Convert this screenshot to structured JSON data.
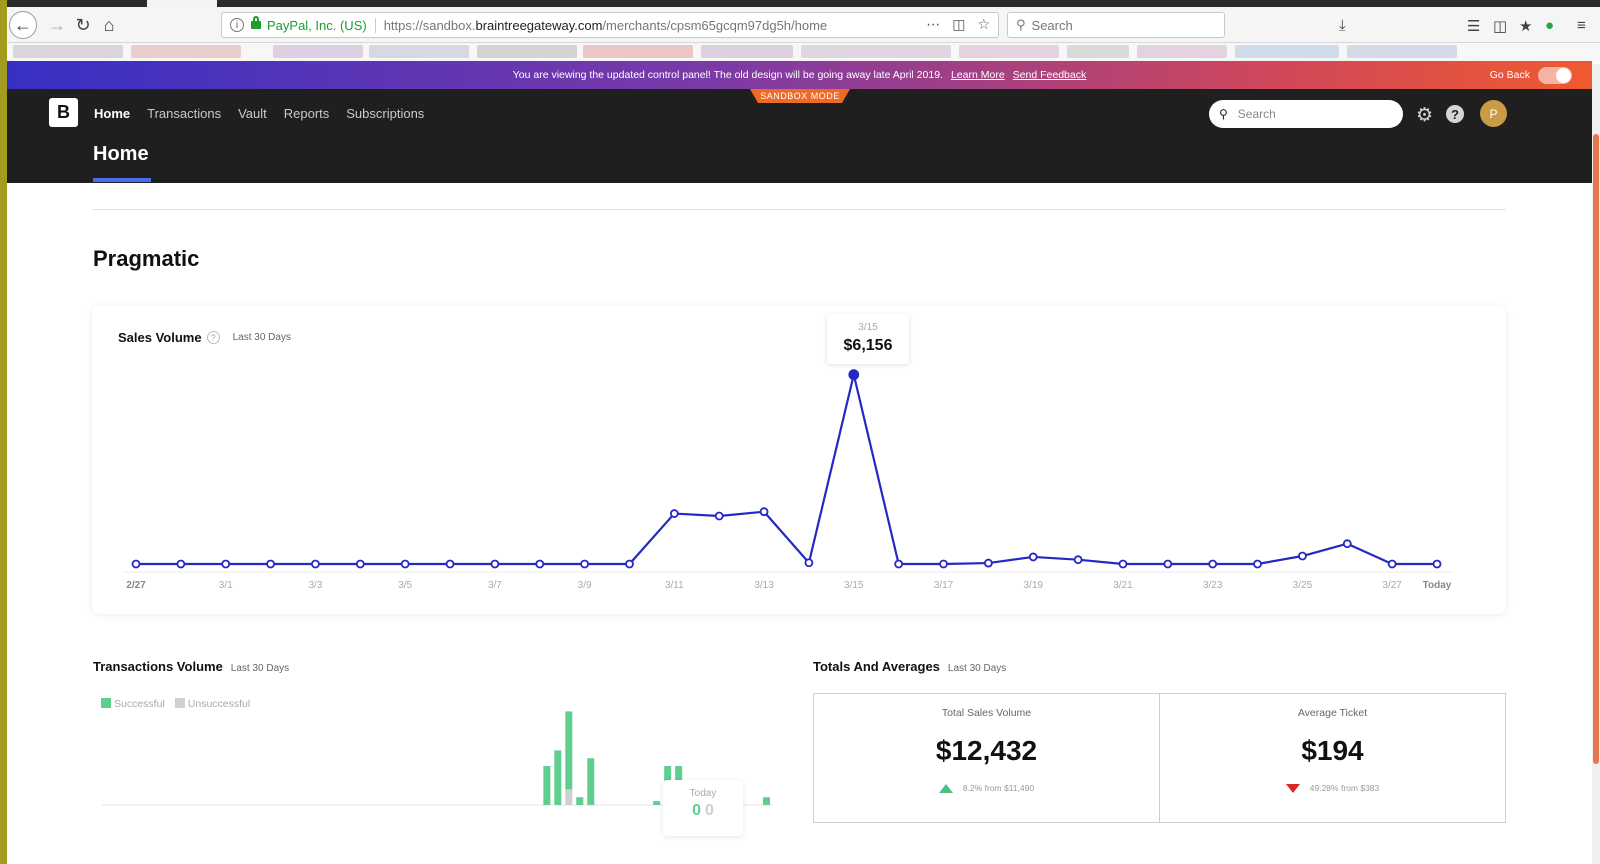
{
  "browser": {
    "site_identity": "PayPal, Inc. (US)",
    "url_prefix": "https://sandbox.",
    "url_domain": "braintreegateway.com",
    "url_path": "/merchants/cpsm65gcqm97dg5h/home",
    "search_placeholder": "Search"
  },
  "banner": {
    "message": "You are viewing the updated control panel! The old design will be going away late April 2019.",
    "learn_more": "Learn More",
    "feedback": "Send Feedback",
    "go_back": "Go Back"
  },
  "app": {
    "sandbox_label": "SANDBOX MODE",
    "logo_letter": "B",
    "nav": [
      "Home",
      "Transactions",
      "Vault",
      "Reports",
      "Subscriptions"
    ],
    "search_placeholder": "Search",
    "avatar_letter": "P",
    "page_title": "Home"
  },
  "merchant_name": "Pragmatic",
  "sales_volume": {
    "title": "Sales Volume",
    "help": "?",
    "period": "Last 30 Days",
    "tooltip_date": "3/15",
    "tooltip_value": "$6,156"
  },
  "chart_data": {
    "type": "line",
    "x": [
      "2/27",
      "2/28",
      "3/1",
      "3/2",
      "3/3",
      "3/4",
      "3/5",
      "3/6",
      "3/7",
      "3/8",
      "3/9",
      "3/10",
      "3/11",
      "3/12",
      "3/13",
      "3/14",
      "3/15",
      "3/16",
      "3/17",
      "3/18",
      "3/19",
      "3/20",
      "3/21",
      "3/22",
      "3/23",
      "3/24",
      "3/25",
      "3/26",
      "3/27",
      "Today"
    ],
    "values": [
      0,
      0,
      0,
      0,
      0,
      0,
      0,
      0,
      0,
      0,
      0,
      0,
      1640,
      1560,
      1700,
      40,
      6156,
      0,
      0,
      30,
      230,
      140,
      0,
      0,
      0,
      0,
      260,
      660,
      0,
      0
    ],
    "x_tick_labels": [
      "2/27",
      "3/1",
      "3/3",
      "3/5",
      "3/7",
      "3/9",
      "3/11",
      "3/13",
      "3/15",
      "3/17",
      "3/19",
      "3/21",
      "3/23",
      "3/25",
      "3/27",
      "Today"
    ],
    "ylim": [
      0,
      6600
    ],
    "highlight_index": 16,
    "color": "#2429c4",
    "grid": false
  },
  "transactions_volume": {
    "title": "Transactions Volume",
    "period": "Last 30 Days",
    "legend_successful": "Successful",
    "legend_unsuccessful": "Unsuccessful",
    "successful_color": "#5fce8e",
    "unsuccessful_color": "#cfcfcf",
    "successful": [
      0,
      0,
      0,
      0,
      0,
      0,
      0,
      0,
      0,
      0,
      0,
      0,
      0,
      0,
      0,
      0,
      0,
      0,
      0,
      0,
      0,
      0,
      0,
      0,
      0,
      0,
      0,
      0,
      0,
      0,
      0,
      0,
      0,
      0,
      0,
      0,
      0,
      0,
      0,
      0,
      5,
      7,
      10,
      1,
      6,
      0,
      0,
      0,
      0,
      0,
      0.5,
      5,
      5,
      0,
      0,
      0,
      0,
      0,
      0,
      0,
      1
    ],
    "unsuccessful": [
      0,
      0,
      0,
      0,
      0,
      0,
      0,
      0,
      0,
      0,
      0,
      0,
      0,
      0,
      0,
      0,
      0,
      0,
      0,
      0,
      0,
      0,
      0,
      0,
      0,
      0,
      0,
      0,
      0,
      0,
      0,
      0,
      0,
      0,
      0,
      0,
      0,
      0,
      0,
      0,
      0,
      0,
      2,
      0,
      0,
      0,
      0,
      0,
      0,
      0,
      0,
      0,
      0,
      0,
      0,
      0,
      0,
      0,
      0,
      0,
      0
    ],
    "tooltip_date": "Today",
    "tooltip_successful": "0",
    "tooltip_unsuccessful": "0"
  },
  "totals": {
    "title": "Totals And Averages",
    "period": "Last 30 Days",
    "total_label": "Total Sales Volume",
    "total_value": "$12,432",
    "total_change": "8.2% from $11,490",
    "avg_label": "Average Ticket",
    "avg_value": "$194",
    "avg_change": "49.28% from $383"
  }
}
